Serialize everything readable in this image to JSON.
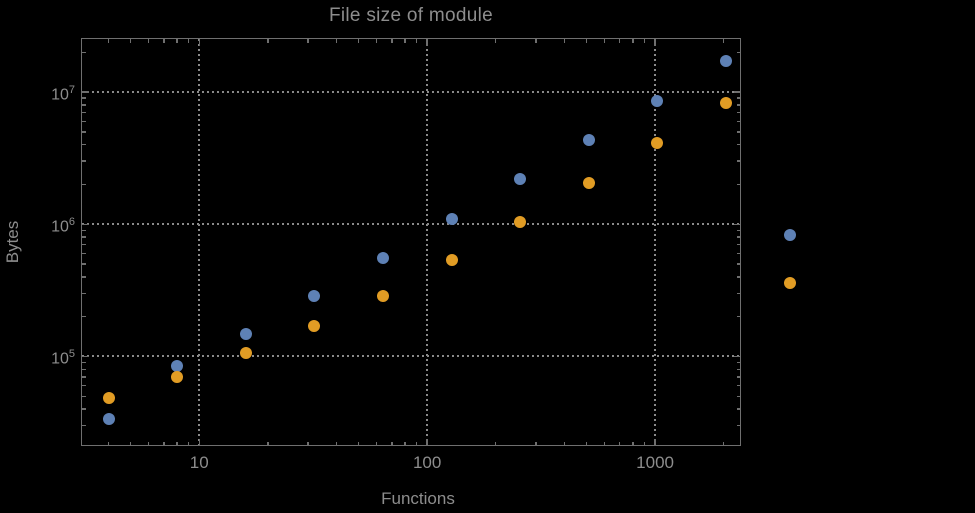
{
  "page": {
    "background_color": "#000000",
    "frame_color": "#6f6f6f",
    "grid_color": "#8a8a8a",
    "text_color": "#8d8d8d"
  },
  "chart_data": {
    "type": "scatter",
    "title": "File size of module",
    "xlabel": "Functions",
    "ylabel": "Bytes",
    "x_scale": "log",
    "y_scale": "log",
    "xlim": [
      3.06,
      2370
    ],
    "ylim": [
      21200,
      25400000
    ],
    "grid": "major gridlines only, dotted",
    "legend_position": "right of frame, marker swatches only (labels not visible)",
    "x_major_ticks": [
      10,
      100,
      1000
    ],
    "x_tick_labels": [
      "10",
      "100",
      "1000"
    ],
    "y_major_ticks": [
      100000,
      1000000,
      10000000
    ],
    "y_tick_labels": [
      "10^5",
      "10^6",
      "10^7"
    ],
    "x": [
      4,
      8,
      16,
      32,
      64,
      128,
      256,
      512,
      1024,
      2048
    ],
    "series": [
      {
        "name": "blue",
        "color": "#5e81b5",
        "values": [
          33500,
          85000,
          147000,
          288000,
          553000,
          1090000,
          2200000,
          4330000,
          8590000,
          17200000
        ]
      },
      {
        "name": "orange",
        "color": "#e19c24",
        "values": [
          48500,
          70000,
          106000,
          169000,
          286000,
          537000,
          1040000,
          2040000,
          4090000,
          8220000
        ]
      }
    ],
    "legend_markers": [
      {
        "series": "blue",
        "color": "#5e81b5",
        "label": ""
      },
      {
        "series": "orange",
        "color": "#e19c24",
        "label": ""
      }
    ]
  }
}
